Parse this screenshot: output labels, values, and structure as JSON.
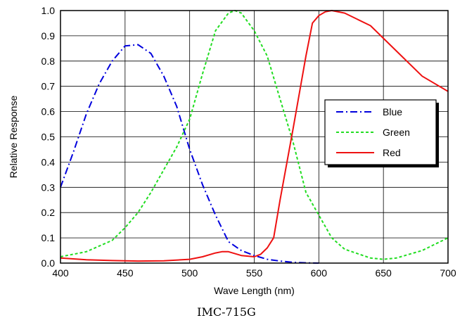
{
  "chart_data": {
    "type": "line",
    "title": "",
    "caption": "IMC-715G",
    "xlabel": "Wave Length (nm)",
    "ylabel": "Relative Response",
    "xlim": [
      400,
      700
    ],
    "ylim": [
      0.0,
      1.0
    ],
    "xticks": [
      "400",
      "450",
      "500",
      "550",
      "600",
      "650",
      "700"
    ],
    "yticks": [
      "0.0",
      "0.1",
      "0.2",
      "0.3",
      "0.4",
      "0.5",
      "0.6",
      "0.7",
      "0.8",
      "0.9",
      "1.0"
    ],
    "grid": true,
    "legend_position": "right",
    "series": [
      {
        "name": "Blue",
        "color": "#0000dd",
        "style": "dash-dot",
        "x": [
          400,
          410,
          420,
          430,
          440,
          450,
          460,
          470,
          480,
          490,
          500,
          510,
          520,
          530,
          540,
          550,
          560,
          570,
          580,
          590,
          600
        ],
        "y": [
          0.3,
          0.44,
          0.59,
          0.71,
          0.8,
          0.86,
          0.865,
          0.83,
          0.74,
          0.62,
          0.45,
          0.31,
          0.19,
          0.085,
          0.05,
          0.03,
          0.015,
          0.008,
          0.003,
          0.001,
          0.0
        ]
      },
      {
        "name": "Green",
        "color": "#22dd22",
        "style": "dotted",
        "x": [
          400,
          420,
          440,
          450,
          460,
          470,
          480,
          490,
          500,
          510,
          520,
          530,
          535,
          540,
          550,
          560,
          570,
          580,
          590,
          600,
          610,
          620,
          640,
          650,
          660,
          680,
          700
        ],
        "y": [
          0.025,
          0.045,
          0.09,
          0.14,
          0.2,
          0.28,
          0.37,
          0.46,
          0.57,
          0.75,
          0.92,
          0.99,
          1.0,
          0.99,
          0.92,
          0.82,
          0.65,
          0.48,
          0.28,
          0.19,
          0.1,
          0.055,
          0.02,
          0.015,
          0.02,
          0.05,
          0.1
        ]
      },
      {
        "name": "Red",
        "color": "#ee1111",
        "style": "solid",
        "x": [
          400,
          420,
          440,
          460,
          480,
          500,
          510,
          520,
          525,
          530,
          540,
          550,
          555,
          560,
          565,
          570,
          580,
          590,
          595,
          600,
          605,
          610,
          620,
          640,
          650,
          660,
          680,
          700
        ],
        "y": [
          0.02,
          0.013,
          0.01,
          0.008,
          0.009,
          0.015,
          0.025,
          0.04,
          0.045,
          0.045,
          0.03,
          0.025,
          0.035,
          0.06,
          0.1,
          0.25,
          0.53,
          0.82,
          0.95,
          0.98,
          0.995,
          1.0,
          0.99,
          0.94,
          0.89,
          0.84,
          0.74,
          0.68
        ]
      }
    ]
  }
}
